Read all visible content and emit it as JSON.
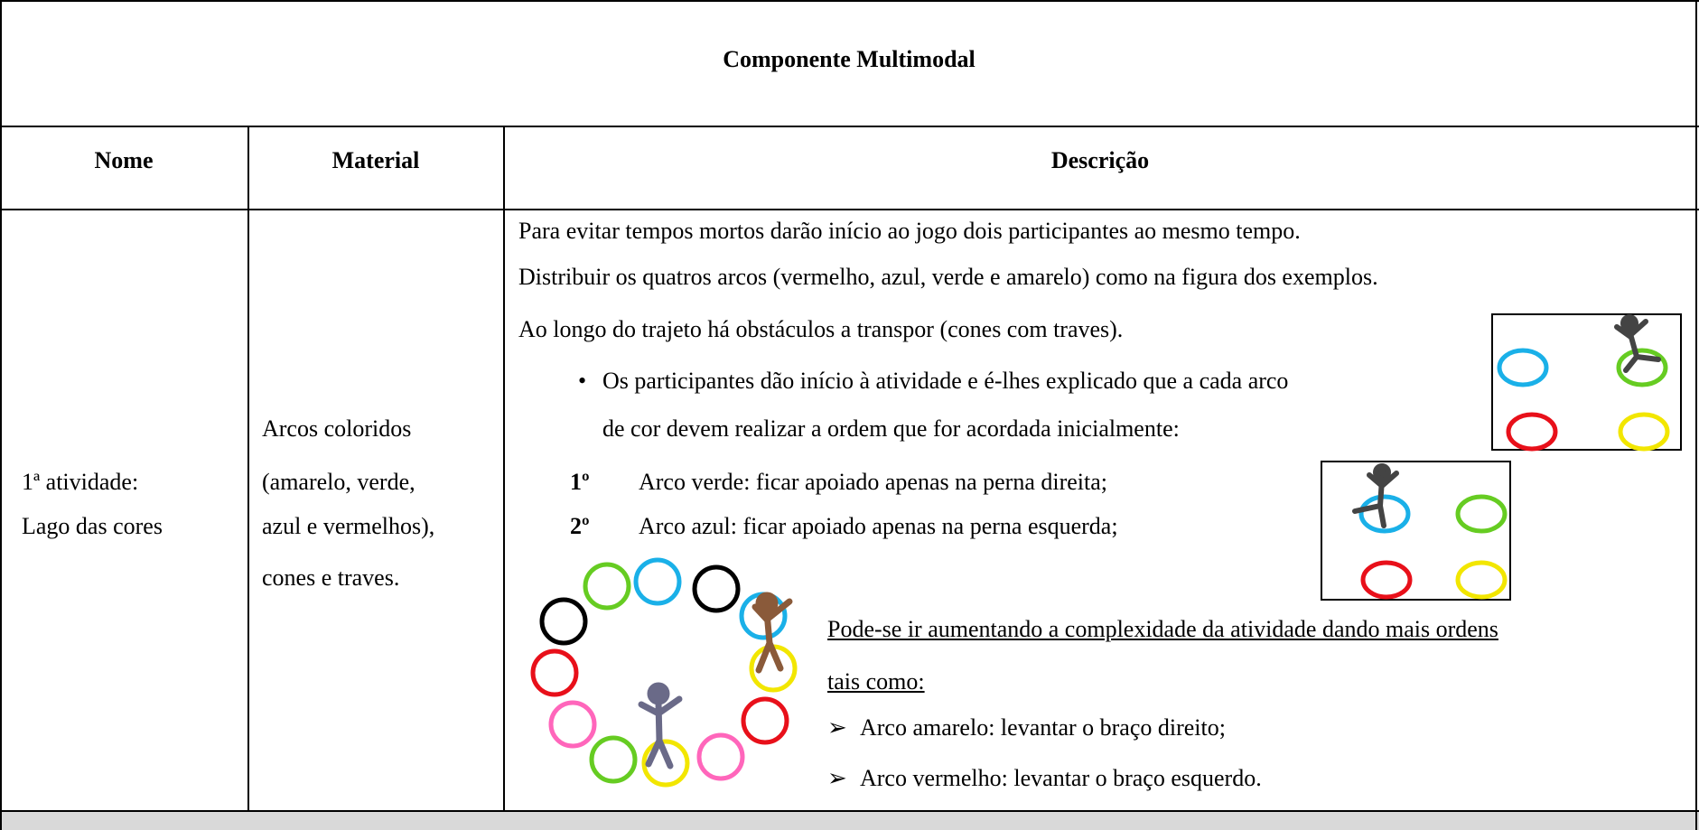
{
  "title": "Componente Multimodal",
  "table": {
    "header": [
      "Nome",
      "Material",
      "Descrição"
    ],
    "rows": [
      {
        "nome": [
          "1ª atividade:",
          "Lago das cores"
        ],
        "material": [
          "Arcos coloridos",
          "(amarelo, verde,",
          "azul e vermelhos),",
          "cones e traves."
        ],
        "descricao": {
          "paragraphs": [
            "Para evitar tempos mortos darão início ao jogo dois participantes ao mesmo tempo.",
            "Distribuir os quatros arcos (vermelho, azul, verde e amarelo) como na figura dos exemplos.",
            "Ao longo do trajeto há obstáculos a transpor (cones com traves)."
          ],
          "bullet": [
            "Os participantes dão início à atividade e é-lhes explicado que a cada arco",
            "de cor devem realizar a ordem que for acordada inicialmente:"
          ],
          "orders": [
            {
              "label": "1º",
              "text": "Arco verde: ficar apoiado apenas na perna direita;"
            },
            {
              "label": "2º",
              "text": "Arco azul: ficar apoiado apenas na perna esquerda;"
            }
          ],
          "note": [
            "Pode-se ir aumentando a complexidade da atividade dando mais ordens",
            "tais como:"
          ],
          "extra_orders": [
            "Arco amarelo: levantar o braço direito;",
            "Arco vermelho: levantar o braço esquerdo."
          ]
        }
      }
    ]
  }
}
